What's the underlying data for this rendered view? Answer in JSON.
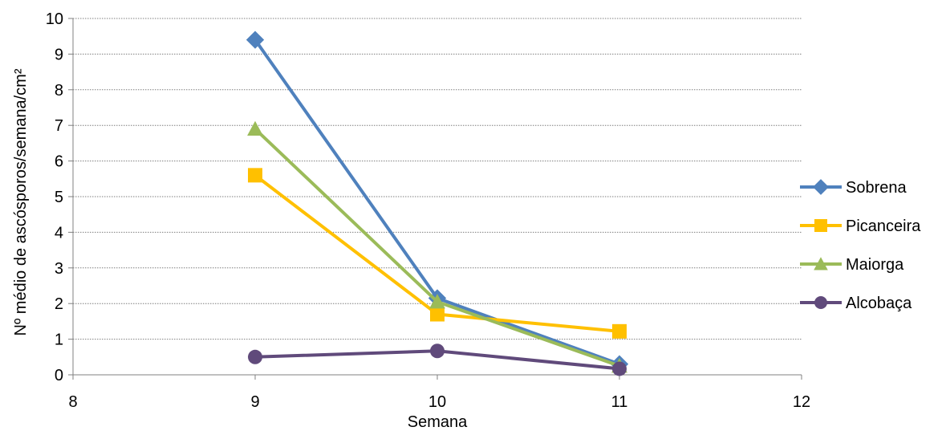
{
  "chart_data": {
    "type": "line",
    "title": "",
    "xlabel": "Semana",
    "ylabel": "Nº médio de ascósporos/semana/cm²",
    "xlim": [
      8,
      12
    ],
    "ylim": [
      0,
      10
    ],
    "xticks": [
      "8",
      "9",
      "10",
      "11",
      "12"
    ],
    "yticks": [
      "0",
      "1",
      "2",
      "3",
      "4",
      "5",
      "6",
      "7",
      "8",
      "9",
      "10"
    ],
    "grid": true,
    "legend_position": "right",
    "x": [
      9,
      10,
      11
    ],
    "series": [
      {
        "name": "Sobrena",
        "values": [
          9.4,
          2.15,
          0.3
        ],
        "color": "#4F81BD",
        "marker": "diamond"
      },
      {
        "name": "Picanceira",
        "values": [
          5.6,
          1.7,
          1.22
        ],
        "color": "#FFC000",
        "marker": "square"
      },
      {
        "name": "Maiorga",
        "values": [
          6.9,
          2.05,
          0.25
        ],
        "color": "#9BBB59",
        "marker": "triangle"
      },
      {
        "name": "Alcobaça",
        "values": [
          0.5,
          0.67,
          0.17
        ],
        "color": "#604A7B",
        "marker": "circle"
      }
    ]
  }
}
